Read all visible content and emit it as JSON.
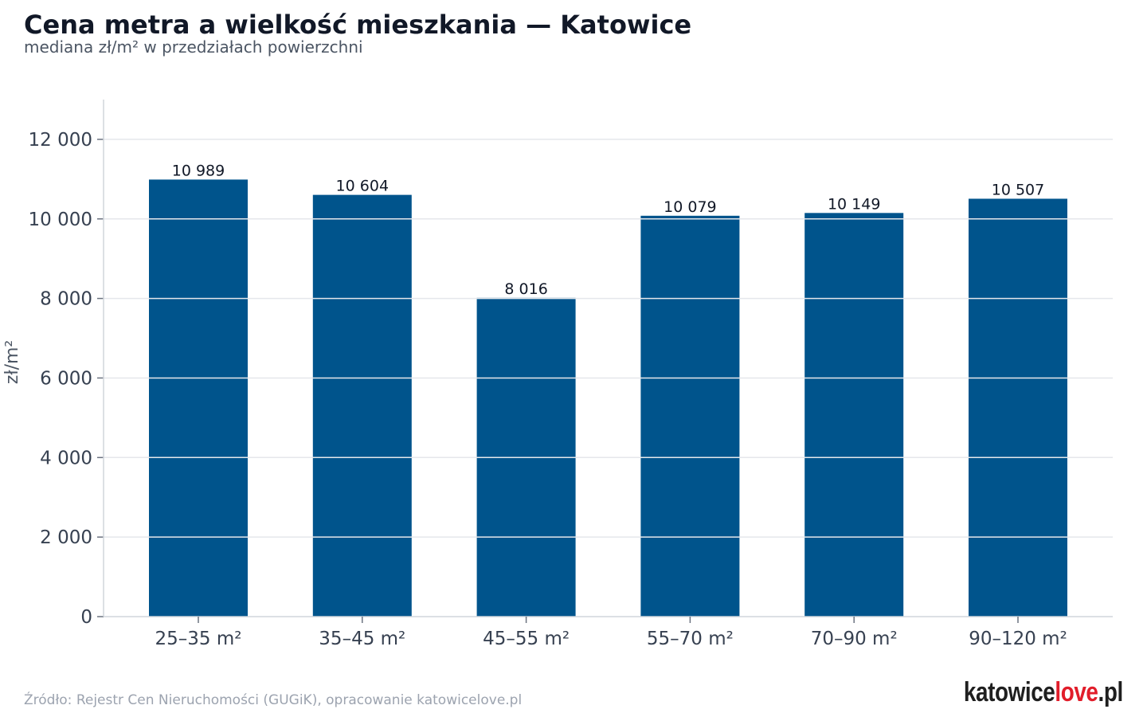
{
  "header": {
    "title": "Cena metra a wielkość mieszkania — Katowice",
    "subtitle": "mediana zł/m² w przedziałach powierzchni"
  },
  "footer": {
    "source": "Źródło: Rejestr Cen Nieruchomości (GUGiK), opracowanie katowicelove.pl",
    "logo_part1": "katowice",
    "logo_part2": "love",
    "logo_part3": ".pl"
  },
  "colors": {
    "bar": "#00548c",
    "grid": "#e5e7eb",
    "logo_accent": "#e11d2a"
  },
  "chart_data": {
    "type": "bar",
    "title": "Cena metra a wielkość mieszkania — Katowice",
    "subtitle": "mediana zł/m² w przedziałach powierzchni",
    "xlabel": "",
    "ylabel": "zł/m²",
    "categories": [
      "25–35 m²",
      "35–45 m²",
      "45–55 m²",
      "55–70 m²",
      "70–90 m²",
      "90–120 m²"
    ],
    "values": [
      10989,
      10604,
      8016,
      10079,
      10149,
      10507
    ],
    "value_labels": [
      "10 989",
      "10 604",
      "8 016",
      "10 079",
      "10 149",
      "10 507"
    ],
    "ylim": [
      0,
      13000
    ],
    "yticks": [
      0,
      2000,
      4000,
      6000,
      8000,
      10000,
      12000
    ],
    "ytick_labels": [
      "0",
      "2 000",
      "4 000",
      "6 000",
      "8 000",
      "10 000",
      "12 000"
    ],
    "grid": true,
    "legend": "none"
  }
}
